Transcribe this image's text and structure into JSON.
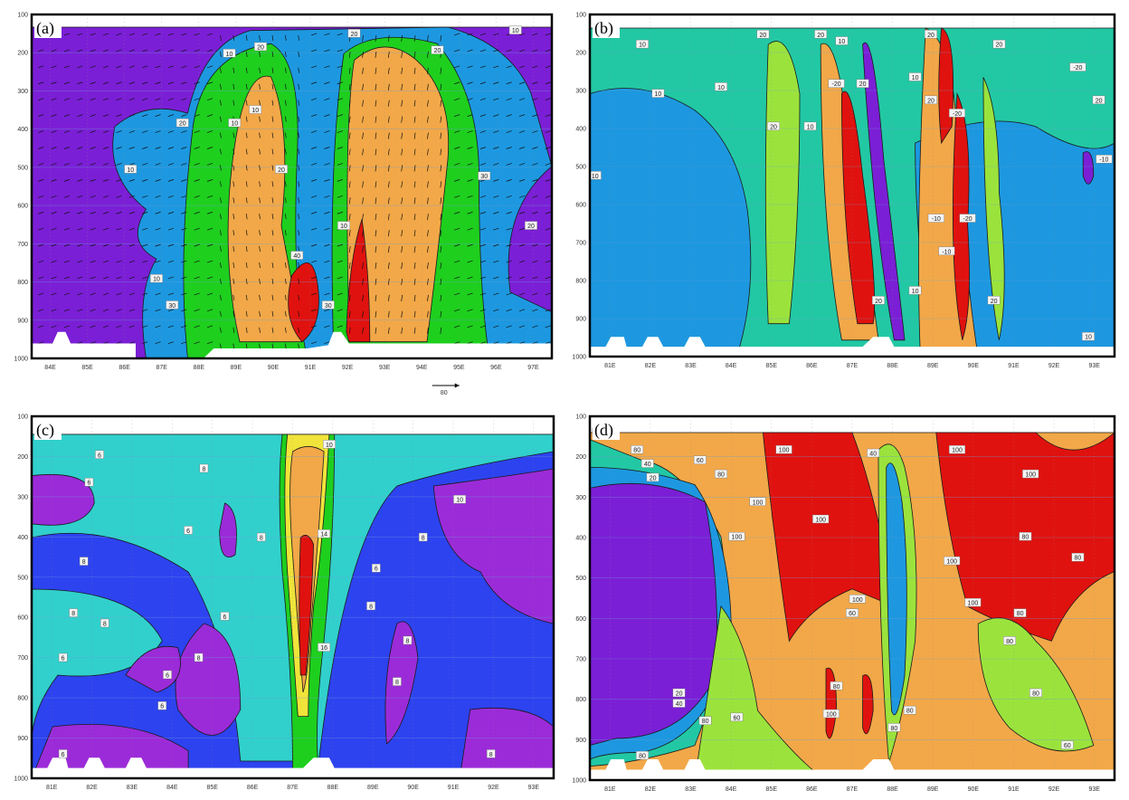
{
  "colors": {
    "purple": "#7b1fd6",
    "violet": "#9b2bd8",
    "sky": "#1d98e0",
    "green": "#1ecf1e",
    "orange": "#f2a848",
    "red": "#e0120f",
    "teal": "#22c8a4",
    "blue": "#2d43f0",
    "cyan": "#31d0cc",
    "yellow": "#f0e43a",
    "lime": "#9be33c",
    "white": "#ffffff"
  },
  "chart_data": [
    {
      "panel": "a",
      "tag": "(a)",
      "type": "heatmap",
      "has_wind_vectors": true,
      "vector_reference_label": "80",
      "y_ticks": [
        "100",
        "200",
        "300",
        "400",
        "500",
        "600",
        "700",
        "800",
        "900",
        "1000"
      ],
      "x_ticks": [
        "84E",
        "85E",
        "86E",
        "87E",
        "88E",
        "89E",
        "90E",
        "91E",
        "92E",
        "93E",
        "94E",
        "95E",
        "96E",
        "97E"
      ],
      "contour_labels": [
        "10",
        "20",
        "20",
        "20",
        "10",
        "20",
        "10",
        "10",
        "10",
        "20",
        "30",
        "20",
        "10",
        "40",
        "10",
        "30",
        "30"
      ]
    },
    {
      "panel": "b",
      "tag": "(b)",
      "type": "heatmap",
      "y_ticks": [
        "100",
        "200",
        "300",
        "400",
        "500",
        "600",
        "700",
        "800",
        "900",
        "1000"
      ],
      "x_ticks": [
        "81E",
        "82E",
        "83E",
        "84E",
        "85E",
        "86E",
        "87E",
        "88E",
        "89E",
        "90E",
        "91E",
        "92E",
        "93E"
      ],
      "contour_labels": [
        "10",
        "20",
        "10",
        "20",
        "10",
        "20",
        "20",
        "-20",
        "20",
        "-10",
        "10",
        "10",
        "-20",
        "20",
        "10",
        "20",
        "-20",
        "20",
        "10",
        "-10",
        "-20",
        "10",
        "20",
        "-10",
        "20",
        "10"
      ]
    },
    {
      "panel": "c",
      "tag": "(c)",
      "type": "heatmap",
      "y_ticks": [
        "100",
        "200",
        "300",
        "400",
        "500",
        "600",
        "700",
        "800",
        "900",
        "1000"
      ],
      "x_ticks": [
        "81E",
        "82E",
        "83E",
        "84E",
        "85E",
        "86E",
        "87E",
        "88E",
        "89E",
        "90E",
        "91E",
        "92E",
        "93E"
      ],
      "contour_labels": [
        "6",
        "8",
        "6",
        "6",
        "8",
        "8",
        "8",
        "6",
        "8",
        "10",
        "14",
        "16",
        "8",
        "6",
        "8",
        "8",
        "10",
        "8",
        "6",
        "6",
        "8",
        "6",
        "8",
        "6"
      ]
    },
    {
      "panel": "d",
      "tag": "(d)",
      "type": "heatmap",
      "y_ticks": [
        "100",
        "200",
        "300",
        "400",
        "500",
        "600",
        "700",
        "800",
        "900",
        "1000"
      ],
      "x_ticks": [
        "81E",
        "82E",
        "83E",
        "84E",
        "85E",
        "86E",
        "87E",
        "88E",
        "89E",
        "90E",
        "91E",
        "92E",
        "93E"
      ],
      "contour_labels": [
        "100",
        "80",
        "40",
        "20",
        "60",
        "80",
        "100",
        "100",
        "100",
        "100",
        "40",
        "100",
        "100",
        "80",
        "100",
        "100",
        "60",
        "80",
        "100",
        "80",
        "80",
        "80",
        "20",
        "40",
        "60",
        "80",
        "80",
        "80",
        "100",
        "80",
        "60",
        "80"
      ]
    }
  ]
}
